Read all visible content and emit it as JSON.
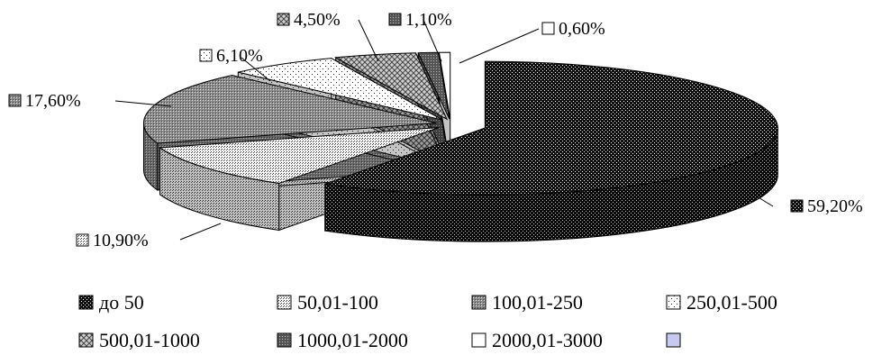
{
  "chart_data": {
    "type": "pie",
    "variant": "3d-exploded",
    "title": "",
    "categories": [
      "до 50",
      "50,01-100",
      "100,01-250",
      "250,01-500",
      "500,01-1000",
      "1000,01-2000",
      "2000,01-3000",
      ""
    ],
    "values": [
      59.2,
      10.9,
      17.6,
      6.1,
      4.5,
      1.1,
      0.6,
      0
    ],
    "data_labels": [
      "59,20%",
      "10,90%",
      "17,60%",
      "6,10%",
      "4,50%",
      "1,10%",
      "0,60%",
      ""
    ],
    "patterns": [
      "dark-checker",
      "light-dots",
      "medium-dots",
      "sparse-dots",
      "diagonal-cross",
      "dark-dots",
      "white",
      "lavender"
    ],
    "legend_position": "bottom"
  }
}
